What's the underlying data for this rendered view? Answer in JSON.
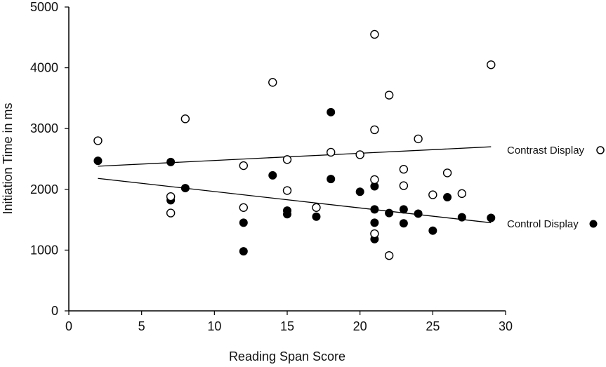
{
  "chart_data": {
    "type": "scatter",
    "title": "",
    "xlabel": "Reading Span Score",
    "ylabel": "Initiation Time in ms",
    "xlim": [
      0,
      30
    ],
    "ylim": [
      0,
      5000
    ],
    "xticks": [
      0,
      5,
      10,
      15,
      20,
      25,
      30
    ],
    "yticks": [
      0,
      1000,
      2000,
      3000,
      4000,
      5000
    ],
    "grid": false,
    "legend_position": "right, inline at end of regression lines",
    "series": [
      {
        "name": "Contrast Display",
        "marker": "open-circle",
        "color": "#000000",
        "points": [
          [
            2,
            2800
          ],
          [
            7,
            1880
          ],
          [
            7,
            1610
          ],
          [
            8,
            3160
          ],
          [
            12,
            2390
          ],
          [
            12,
            1700
          ],
          [
            14,
            3760
          ],
          [
            15,
            2490
          ],
          [
            15,
            1980
          ],
          [
            17,
            1700
          ],
          [
            18,
            2610
          ],
          [
            20,
            2570
          ],
          [
            21,
            4550
          ],
          [
            21,
            2980
          ],
          [
            21,
            2160
          ],
          [
            21,
            1270
          ],
          [
            22,
            3550
          ],
          [
            22,
            910
          ],
          [
            23,
            2330
          ],
          [
            23,
            2060
          ],
          [
            24,
            2830
          ],
          [
            25,
            1910
          ],
          [
            26,
            2270
          ],
          [
            27,
            1930
          ],
          [
            29,
            4050
          ]
        ],
        "trendline": {
          "x": [
            2,
            29
          ],
          "y": [
            2380,
            2700
          ]
        }
      },
      {
        "name": "Control Display",
        "marker": "filled-circle",
        "color": "#000000",
        "points": [
          [
            2,
            2470
          ],
          [
            7,
            2450
          ],
          [
            7,
            1820
          ],
          [
            8,
            2020
          ],
          [
            12,
            1450
          ],
          [
            12,
            980
          ],
          [
            14,
            2230
          ],
          [
            15,
            1650
          ],
          [
            15,
            1590
          ],
          [
            17,
            1550
          ],
          [
            18,
            3270
          ],
          [
            18,
            2170
          ],
          [
            20,
            1960
          ],
          [
            21,
            2050
          ],
          [
            21,
            1670
          ],
          [
            21,
            1450
          ],
          [
            21,
            1180
          ],
          [
            22,
            1610
          ],
          [
            23,
            1670
          ],
          [
            23,
            1440
          ],
          [
            24,
            1600
          ],
          [
            25,
            1320
          ],
          [
            26,
            1870
          ],
          [
            27,
            1540
          ],
          [
            29,
            1530
          ]
        ],
        "trendline": {
          "x": [
            2,
            29
          ],
          "y": [
            2180,
            1450
          ]
        }
      }
    ]
  },
  "axes": {
    "x_title": "Reading Span Score",
    "y_title": "Initiation Time in ms"
  },
  "legend": {
    "contrast_label": "Contrast Display",
    "control_label": "Control Display"
  }
}
